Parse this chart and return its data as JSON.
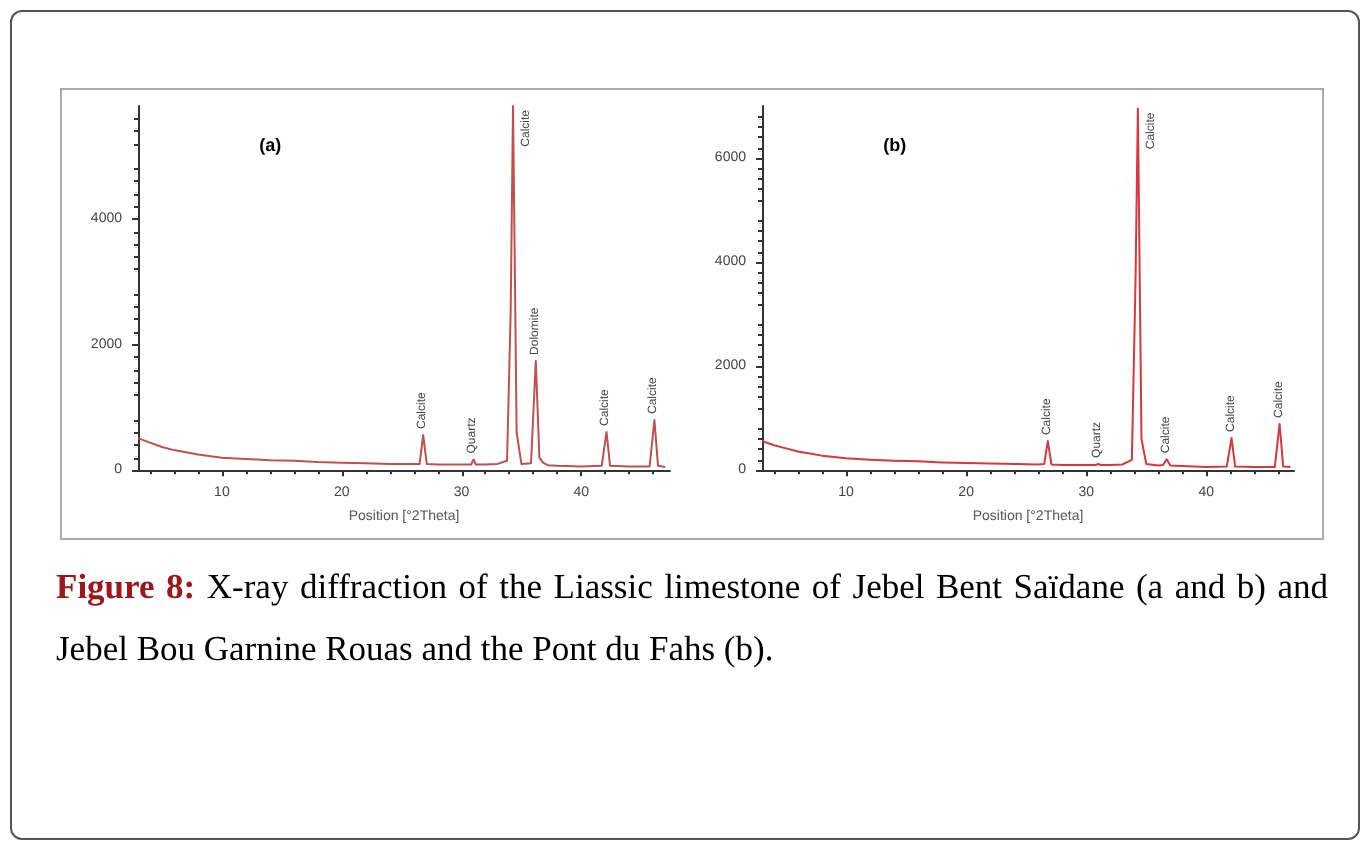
{
  "chart_data": [
    {
      "type": "line",
      "title": "(a)",
      "xlabel": "Position [°2Theta]",
      "xlim": [
        3,
        47.4
      ],
      "ylim": [
        0,
        5800
      ],
      "xticks": [
        10,
        20,
        30,
        40
      ],
      "yticks": [
        0,
        2000,
        4000
      ],
      "grid": false,
      "marker": "none",
      "line_style": "solid",
      "x": [
        3,
        4,
        5,
        6,
        8,
        10,
        12,
        14,
        16,
        18,
        20,
        22,
        24,
        26,
        26.5,
        26.8,
        27.1,
        28,
        30,
        30.8,
        31,
        31.2,
        32,
        33,
        33.8,
        34.1,
        34.3,
        34.6,
        35,
        35.8,
        36.2,
        36.5,
        36.8,
        37.2,
        38,
        40,
        41.7,
        42.1,
        42.4,
        44,
        45.7,
        46.1,
        46.4,
        47
      ],
      "series": [
        {
          "color": "#c0504d",
          "values": [
            510,
            440,
            370,
            320,
            250,
            200,
            180,
            160,
            150,
            130,
            120,
            110,
            100,
            100,
            100,
            560,
            100,
            90,
            90,
            90,
            170,
            90,
            90,
            100,
            150,
            2500,
            5800,
            600,
            100,
            110,
            1740,
            200,
            120,
            80,
            70,
            60,
            70,
            610,
            70,
            60,
            60,
            800,
            70,
            50
          ]
        }
      ],
      "annotations": [
        {
          "text": "Calcite",
          "x": 26.8,
          "y": 560
        },
        {
          "text": "Quartz",
          "x": 31,
          "y": 170
        },
        {
          "text": "Calcite",
          "x": 34.3,
          "y": 5800
        },
        {
          "text": "Dolomite",
          "x": 36.2,
          "y": 1740
        },
        {
          "text": "Calcite",
          "x": 42.1,
          "y": 610
        },
        {
          "text": "Calcite",
          "x": 46.1,
          "y": 800
        }
      ]
    },
    {
      "type": "line",
      "title": "(b)",
      "xlabel": "Position [°2Theta]",
      "xlim": [
        3,
        47.3
      ],
      "ylim": [
        0,
        7000
      ],
      "xticks": [
        10,
        20,
        30,
        40
      ],
      "yticks": [
        0,
        2000,
        4000,
        6000
      ],
      "grid": false,
      "marker": "none",
      "line_style": "solid",
      "x": [
        3,
        4,
        5,
        6,
        8,
        10,
        12,
        14,
        16,
        18,
        20,
        22,
        24,
        26,
        26.5,
        26.8,
        27.1,
        28,
        30,
        30.8,
        31,
        31.2,
        32,
        33,
        33.8,
        34.1,
        34.3,
        34.6,
        35,
        36,
        36.4,
        36.7,
        37,
        38,
        40,
        41.7,
        42.1,
        42.4,
        44,
        45.7,
        46.1,
        46.4,
        47
      ],
      "series": [
        {
          "color": "#d9363e",
          "values": [
            560,
            480,
            420,
            360,
            280,
            230,
            200,
            180,
            170,
            150,
            140,
            130,
            120,
            110,
            120,
            560,
            110,
            100,
            100,
            100,
            120,
            100,
            100,
            110,
            200,
            3600,
            6950,
            600,
            120,
            90,
            100,
            210,
            90,
            80,
            60,
            70,
            620,
            70,
            60,
            60,
            890,
            70,
            60
          ]
        }
      ],
      "annotations": [
        {
          "text": "Calcite",
          "x": 26.8,
          "y": 560
        },
        {
          "text": "Quartz",
          "x": 31,
          "y": 120
        },
        {
          "text": "Calcite",
          "x": 34.3,
          "y": 6950
        },
        {
          "text": "Calcite",
          "x": 36.7,
          "y": 210
        },
        {
          "text": "Calcite",
          "x": 42.1,
          "y": 620
        },
        {
          "text": "Calcite",
          "x": 46.1,
          "y": 890
        }
      ]
    },
    {
      "type": "other",
      "annotations": [
        "Figure 8: X-ray diffraction of the Liassic limestone of Jebel Bent Saïdane (a and b) and Jebel Bou Garnine Rouas and the Pont du Fahs (b)."
      ]
    }
  ]
}
